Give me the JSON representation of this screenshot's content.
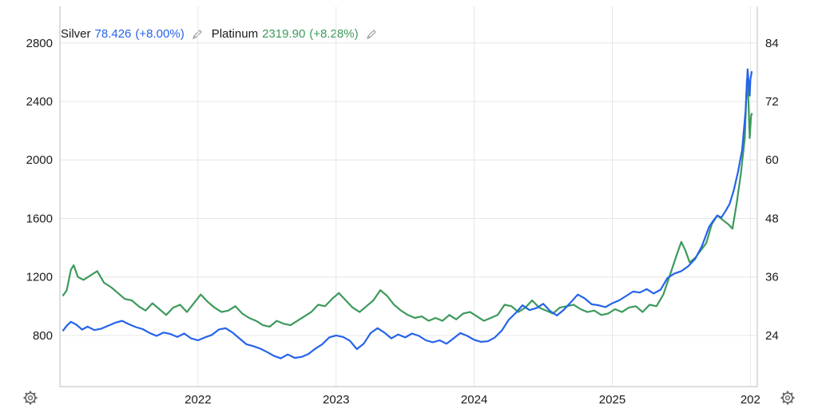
{
  "legend": {
    "silver": {
      "name": "Silver",
      "value": "78.426",
      "change": "(+8.00%)",
      "color": "#2563eb"
    },
    "platinum": {
      "name": "Platinum",
      "value": "2319.90",
      "change": "(+8.28%)",
      "color": "#3d9a5b"
    }
  },
  "chart_data": {
    "type": "line",
    "title": "",
    "xlabel": "",
    "x_ticks": [
      "2022",
      "2023",
      "2024",
      "2025",
      "202"
    ],
    "x_range": [
      2021.0,
      2026.05
    ],
    "y_left": {
      "ticks": [
        "800",
        "1200",
        "1600",
        "2000",
        "2400",
        "2800"
      ],
      "range": [
        450,
        3050
      ]
    },
    "y_right": {
      "ticks": [
        "24",
        "36",
        "48",
        "60",
        "72",
        "84"
      ],
      "range": [
        13.5,
        91.5
      ]
    },
    "grid": true,
    "series": [
      {
        "name": "Silver",
        "axis": "right",
        "color": "#2563eb",
        "points": [
          [
            2021.02,
            24.9
          ],
          [
            2021.05,
            26.0
          ],
          [
            2021.08,
            26.8
          ],
          [
            2021.12,
            26.2
          ],
          [
            2021.16,
            25.2
          ],
          [
            2021.2,
            25.8
          ],
          [
            2021.25,
            25.1
          ],
          [
            2021.3,
            25.4
          ],
          [
            2021.35,
            26.0
          ],
          [
            2021.4,
            26.6
          ],
          [
            2021.45,
            27.0
          ],
          [
            2021.5,
            26.3
          ],
          [
            2021.55,
            25.7
          ],
          [
            2021.6,
            25.3
          ],
          [
            2021.65,
            24.5
          ],
          [
            2021.7,
            23.9
          ],
          [
            2021.75,
            24.6
          ],
          [
            2021.8,
            24.3
          ],
          [
            2021.85,
            23.7
          ],
          [
            2021.9,
            24.4
          ],
          [
            2021.95,
            23.4
          ],
          [
            2022.0,
            23.0
          ],
          [
            2022.05,
            23.6
          ],
          [
            2022.1,
            24.1
          ],
          [
            2022.15,
            25.2
          ],
          [
            2022.2,
            25.5
          ],
          [
            2022.25,
            24.6
          ],
          [
            2022.3,
            23.4
          ],
          [
            2022.35,
            22.2
          ],
          [
            2022.4,
            21.8
          ],
          [
            2022.45,
            21.3
          ],
          [
            2022.5,
            20.6
          ],
          [
            2022.55,
            19.8
          ],
          [
            2022.6,
            19.3
          ],
          [
            2022.65,
            20.1
          ],
          [
            2022.7,
            19.4
          ],
          [
            2022.75,
            19.6
          ],
          [
            2022.8,
            20.2
          ],
          [
            2022.85,
            21.3
          ],
          [
            2022.9,
            22.2
          ],
          [
            2022.95,
            23.6
          ],
          [
            2023.0,
            24.0
          ],
          [
            2023.05,
            23.7
          ],
          [
            2023.1,
            22.9
          ],
          [
            2023.15,
            21.2
          ],
          [
            2023.2,
            22.3
          ],
          [
            2023.25,
            24.5
          ],
          [
            2023.3,
            25.5
          ],
          [
            2023.35,
            24.6
          ],
          [
            2023.4,
            23.4
          ],
          [
            2023.45,
            24.2
          ],
          [
            2023.5,
            23.6
          ],
          [
            2023.55,
            24.4
          ],
          [
            2023.6,
            23.9
          ],
          [
            2023.65,
            23.0
          ],
          [
            2023.7,
            22.6
          ],
          [
            2023.75,
            23.0
          ],
          [
            2023.8,
            22.3
          ],
          [
            2023.85,
            23.4
          ],
          [
            2023.9,
            24.5
          ],
          [
            2023.95,
            23.9
          ],
          [
            2024.0,
            23.1
          ],
          [
            2024.05,
            22.7
          ],
          [
            2024.1,
            22.8
          ],
          [
            2024.15,
            23.6
          ],
          [
            2024.2,
            25.0
          ],
          [
            2024.25,
            27.2
          ],
          [
            2024.3,
            28.6
          ],
          [
            2024.35,
            30.2
          ],
          [
            2024.4,
            29.2
          ],
          [
            2024.45,
            29.6
          ],
          [
            2024.5,
            30.5
          ],
          [
            2024.55,
            29.0
          ],
          [
            2024.6,
            28.1
          ],
          [
            2024.65,
            29.3
          ],
          [
            2024.7,
            30.8
          ],
          [
            2024.75,
            32.4
          ],
          [
            2024.8,
            31.6
          ],
          [
            2024.85,
            30.4
          ],
          [
            2024.9,
            30.2
          ],
          [
            2024.95,
            29.8
          ],
          [
            2025.0,
            30.6
          ],
          [
            2025.05,
            31.2
          ],
          [
            2025.1,
            32.1
          ],
          [
            2025.15,
            33.0
          ],
          [
            2025.2,
            32.8
          ],
          [
            2025.25,
            33.5
          ],
          [
            2025.3,
            32.6
          ],
          [
            2025.35,
            33.4
          ],
          [
            2025.4,
            35.8
          ],
          [
            2025.45,
            36.7
          ],
          [
            2025.5,
            37.2
          ],
          [
            2025.55,
            38.2
          ],
          [
            2025.6,
            39.7
          ],
          [
            2025.65,
            42.4
          ],
          [
            2025.7,
            46.2
          ],
          [
            2025.73,
            47.5
          ],
          [
            2025.76,
            48.6
          ],
          [
            2025.79,
            48.2
          ],
          [
            2025.82,
            49.5
          ],
          [
            2025.85,
            51.0
          ],
          [
            2025.88,
            53.8
          ],
          [
            2025.91,
            57.5
          ],
          [
            2025.94,
            62.0
          ],
          [
            2025.965,
            70.0
          ],
          [
            2025.98,
            78.6
          ],
          [
            2025.99,
            75.0
          ],
          [
            2025.995,
            73.2
          ],
          [
            2026.0,
            76.5
          ],
          [
            2026.01,
            78.2
          ]
        ]
      },
      {
        "name": "Platinum",
        "axis": "left",
        "color": "#3d9a5b",
        "points": [
          [
            2021.02,
            1070
          ],
          [
            2021.05,
            1110
          ],
          [
            2021.08,
            1250
          ],
          [
            2021.1,
            1280
          ],
          [
            2021.13,
            1200
          ],
          [
            2021.17,
            1180
          ],
          [
            2021.22,
            1210
          ],
          [
            2021.27,
            1240
          ],
          [
            2021.32,
            1160
          ],
          [
            2021.37,
            1130
          ],
          [
            2021.42,
            1090
          ],
          [
            2021.47,
            1050
          ],
          [
            2021.52,
            1040
          ],
          [
            2021.57,
            1000
          ],
          [
            2021.62,
            970
          ],
          [
            2021.67,
            1020
          ],
          [
            2021.72,
            980
          ],
          [
            2021.77,
            940
          ],
          [
            2021.82,
            990
          ],
          [
            2021.87,
            1010
          ],
          [
            2021.92,
            960
          ],
          [
            2021.97,
            1020
          ],
          [
            2022.02,
            1080
          ],
          [
            2022.07,
            1030
          ],
          [
            2022.12,
            990
          ],
          [
            2022.17,
            960
          ],
          [
            2022.22,
            970
          ],
          [
            2022.27,
            1000
          ],
          [
            2022.32,
            950
          ],
          [
            2022.37,
            920
          ],
          [
            2022.42,
            900
          ],
          [
            2022.47,
            870
          ],
          [
            2022.52,
            860
          ],
          [
            2022.57,
            900
          ],
          [
            2022.62,
            880
          ],
          [
            2022.67,
            870
          ],
          [
            2022.72,
            900
          ],
          [
            2022.77,
            930
          ],
          [
            2022.82,
            960
          ],
          [
            2022.87,
            1010
          ],
          [
            2022.92,
            1000
          ],
          [
            2022.97,
            1050
          ],
          [
            2023.02,
            1090
          ],
          [
            2023.07,
            1040
          ],
          [
            2023.12,
            990
          ],
          [
            2023.17,
            960
          ],
          [
            2023.22,
            1000
          ],
          [
            2023.27,
            1040
          ],
          [
            2023.32,
            1110
          ],
          [
            2023.37,
            1070
          ],
          [
            2023.42,
            1010
          ],
          [
            2023.47,
            970
          ],
          [
            2023.52,
            940
          ],
          [
            2023.57,
            920
          ],
          [
            2023.62,
            930
          ],
          [
            2023.67,
            900
          ],
          [
            2023.72,
            920
          ],
          [
            2023.77,
            900
          ],
          [
            2023.82,
            940
          ],
          [
            2023.87,
            910
          ],
          [
            2023.92,
            950
          ],
          [
            2023.97,
            960
          ],
          [
            2024.02,
            930
          ],
          [
            2024.07,
            900
          ],
          [
            2024.12,
            920
          ],
          [
            2024.17,
            940
          ],
          [
            2024.22,
            1010
          ],
          [
            2024.27,
            1000
          ],
          [
            2024.32,
            960
          ],
          [
            2024.37,
            990
          ],
          [
            2024.42,
            1040
          ],
          [
            2024.47,
            990
          ],
          [
            2024.52,
            970
          ],
          [
            2024.57,
            950
          ],
          [
            2024.62,
            990
          ],
          [
            2024.67,
            1000
          ],
          [
            2024.72,
            1010
          ],
          [
            2024.77,
            980
          ],
          [
            2024.82,
            960
          ],
          [
            2024.87,
            970
          ],
          [
            2024.92,
            940
          ],
          [
            2024.97,
            950
          ],
          [
            2025.02,
            980
          ],
          [
            2025.07,
            960
          ],
          [
            2025.12,
            990
          ],
          [
            2025.17,
            1000
          ],
          [
            2025.22,
            960
          ],
          [
            2025.27,
            1010
          ],
          [
            2025.32,
            1000
          ],
          [
            2025.37,
            1080
          ],
          [
            2025.42,
            1220
          ],
          [
            2025.47,
            1360
          ],
          [
            2025.5,
            1440
          ],
          [
            2025.53,
            1380
          ],
          [
            2025.56,
            1300
          ],
          [
            2025.6,
            1330
          ],
          [
            2025.64,
            1380
          ],
          [
            2025.68,
            1430
          ],
          [
            2025.72,
            1560
          ],
          [
            2025.76,
            1620
          ],
          [
            2025.8,
            1590
          ],
          [
            2025.84,
            1560
          ],
          [
            2025.87,
            1530
          ],
          [
            2025.9,
            1700
          ],
          [
            2025.93,
            1900
          ],
          [
            2025.96,
            2150
          ],
          [
            2025.975,
            2550
          ],
          [
            2025.985,
            2420
          ],
          [
            2025.995,
            2150
          ],
          [
            2026.005,
            2300
          ],
          [
            2026.012,
            2320
          ]
        ]
      }
    ]
  }
}
